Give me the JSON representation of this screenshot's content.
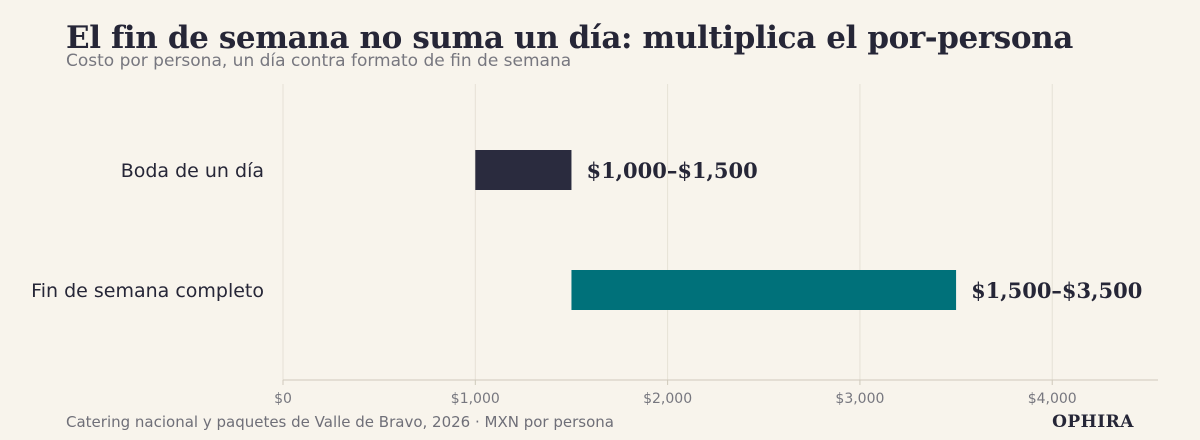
{
  "title": "El fin de semana no suma un día: multiplica el por-persona",
  "subtitle": "Costo por persona, un día contra formato de fin de semana",
  "footer": "Catering nacional y paquetes de Valle de Bravo, 2026 · MXN por persona",
  "brand": "OPHIRA",
  "colors": {
    "background": "#f8f4ec",
    "text": "#262637",
    "muted": "#77777f",
    "grid": "#e6e1d6",
    "axis": "#cfc9bb"
  },
  "chart_data": {
    "type": "bar",
    "orientation": "horizontal-range",
    "categories": [
      "Boda de un día",
      "Fin de semana completo"
    ],
    "ranges": [
      {
        "category": "Boda de un día",
        "low": 1000,
        "high": 1500,
        "label": "$1,000–$1,500",
        "color": "#2a2b3e"
      },
      {
        "category": "Fin de semana completo",
        "low": 1500,
        "high": 3500,
        "label": "$1,500–$3,500",
        "color": "#00717a"
      }
    ],
    "xlim": [
      0,
      4550
    ],
    "xticks": [
      0,
      1000,
      2000,
      3000,
      4000
    ],
    "xtick_labels": [
      "$0",
      "$1,000",
      "$2,000",
      "$3,000",
      "$4,000"
    ],
    "grid": true
  }
}
